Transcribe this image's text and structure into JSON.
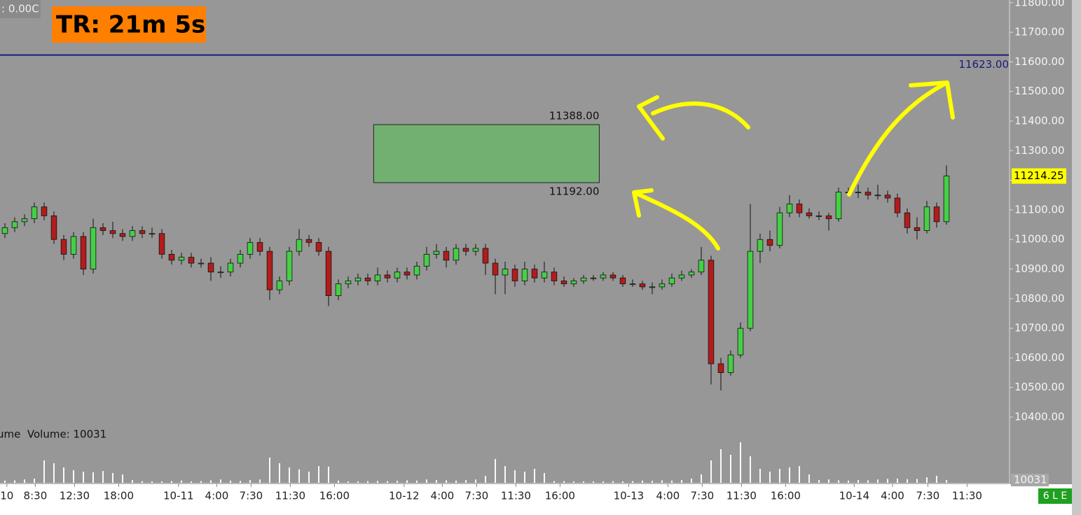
{
  "chart_data": {
    "type": "candlestick",
    "status": ": 0.00C",
    "title": "TR: 21m 5s",
    "volume_label": "ume  Volume: 10031",
    "instrument": "6 L E",
    "bull_color": "#46cf46",
    "bear_color": "#b31c1c",
    "ylim": [
      10367,
      11809
    ],
    "yticks": [
      {
        "value": 11800,
        "label": "11800.00"
      },
      {
        "value": 11700,
        "label": "11700.00"
      },
      {
        "value": 11600,
        "label": "11600.00"
      },
      {
        "value": 11500,
        "label": "11500.00"
      },
      {
        "value": 11400,
        "label": "11400.00"
      },
      {
        "value": 11300,
        "label": "11300.00"
      },
      {
        "value": 11200,
        "label": "11200.00"
      },
      {
        "value": 11100,
        "label": "11100.00"
      },
      {
        "value": 11000,
        "label": "11000.00"
      },
      {
        "value": 10900,
        "label": "10900.00"
      },
      {
        "value": 10800,
        "label": "10800.00"
      },
      {
        "value": 10700,
        "label": "10700.00"
      },
      {
        "value": 10600,
        "label": "10600.00"
      },
      {
        "value": 10500,
        "label": "10500.00"
      },
      {
        "value": 10400,
        "label": "10400.00"
      }
    ],
    "xlim": [
      0,
      102.86
    ],
    "xticks": [
      {
        "value": 0.7,
        "label": "10"
      },
      {
        "value": 3.6,
        "label": "8:30"
      },
      {
        "value": 7.6,
        "label": "12:30"
      },
      {
        "value": 12.1,
        "label": "18:00"
      },
      {
        "value": 18.2,
        "label": "10-11"
      },
      {
        "value": 22.1,
        "label": "4:00"
      },
      {
        "value": 25.6,
        "label": "7:30"
      },
      {
        "value": 29.6,
        "label": "11:30"
      },
      {
        "value": 34.1,
        "label": "16:00"
      },
      {
        "value": 41.2,
        "label": "10-12"
      },
      {
        "value": 45.1,
        "label": "4:00"
      },
      {
        "value": 48.6,
        "label": "7:30"
      },
      {
        "value": 52.6,
        "label": "11:30"
      },
      {
        "value": 57.1,
        "label": "16:00"
      },
      {
        "value": 64.1,
        "label": "10-13"
      },
      {
        "value": 68.1,
        "label": "4:00"
      },
      {
        "value": 71.6,
        "label": "7:30"
      },
      {
        "value": 75.6,
        "label": "11:30"
      },
      {
        "value": 80.1,
        "label": "16:00"
      },
      {
        "value": 87.1,
        "label": "10-14"
      },
      {
        "value": 91,
        "label": "4:00"
      },
      {
        "value": 94.6,
        "label": "7:30"
      },
      {
        "value": 98.6,
        "label": "11:30"
      }
    ],
    "ref_line": {
      "value": 11623,
      "label": "11623.00",
      "color": "#1a1a7a"
    },
    "zone": {
      "x": [
        38.1,
        61.1
      ],
      "high": 11388,
      "high_label": "11388.00",
      "low": 11192,
      "low_label": "11192.00",
      "color": "#72b072"
    },
    "last_price": {
      "value": 11214.25,
      "label": "11214.25"
    },
    "ohlc": [
      [
        11020,
        11055,
        11005,
        11040
      ],
      [
        11040,
        11075,
        11025,
        11060
      ],
      [
        11060,
        11085,
        11045,
        11070
      ],
      [
        11070,
        11125,
        11055,
        11110
      ],
      [
        11110,
        11125,
        11065,
        11080
      ],
      [
        11080,
        11095,
        10985,
        11000
      ],
      [
        11000,
        11015,
        10930,
        10950
      ],
      [
        10950,
        11025,
        10935,
        11010
      ],
      [
        11010,
        11025,
        10880,
        10900
      ],
      [
        10900,
        11070,
        10885,
        11040
      ],
      [
        11040,
        11055,
        11015,
        11030
      ],
      [
        11030,
        11060,
        11005,
        11020
      ],
      [
        11020,
        11035,
        10995,
        11010
      ],
      [
        11010,
        11045,
        10995,
        11030
      ],
      [
        11030,
        11045,
        11005,
        11020
      ],
      [
        11020,
        11040,
        11005,
        11020
      ],
      [
        11020,
        11035,
        10935,
        10950
      ],
      [
        10950,
        10965,
        10915,
        10930
      ],
      [
        10930,
        10955,
        10915,
        10940
      ],
      [
        10940,
        10955,
        10905,
        10920
      ],
      [
        10920,
        10935,
        10905,
        10920
      ],
      [
        10920,
        10940,
        10860,
        10890
      ],
      [
        10890,
        10910,
        10870,
        10890
      ],
      [
        10890,
        10935,
        10875,
        10920
      ],
      [
        10920,
        10965,
        10905,
        10950
      ],
      [
        10950,
        11005,
        10935,
        10990
      ],
      [
        10990,
        11005,
        10945,
        10960
      ],
      [
        10960,
        10975,
        10795,
        10830
      ],
      [
        10830,
        10875,
        10815,
        10860
      ],
      [
        10860,
        10975,
        10845,
        10960
      ],
      [
        10960,
        11035,
        10945,
        11000
      ],
      [
        11000,
        11015,
        10975,
        10990
      ],
      [
        10990,
        11005,
        10945,
        10960
      ],
      [
        10960,
        10975,
        10775,
        10810
      ],
      [
        10810,
        10865,
        10795,
        10850
      ],
      [
        10850,
        10875,
        10835,
        10860
      ],
      [
        10860,
        10885,
        10845,
        10870
      ],
      [
        10870,
        10885,
        10845,
        10860
      ],
      [
        10860,
        10905,
        10845,
        10880
      ],
      [
        10880,
        10895,
        10855,
        10870
      ],
      [
        10870,
        10905,
        10855,
        10890
      ],
      [
        10890,
        10905,
        10865,
        10880
      ],
      [
        10880,
        10925,
        10865,
        10910
      ],
      [
        10910,
        10975,
        10895,
        10950
      ],
      [
        10950,
        10985,
        10935,
        10960
      ],
      [
        10960,
        10975,
        10905,
        10930
      ],
      [
        10930,
        10985,
        10915,
        10970
      ],
      [
        10970,
        10985,
        10945,
        10960
      ],
      [
        10960,
        10985,
        10945,
        10970
      ],
      [
        10970,
        10985,
        10880,
        10920
      ],
      [
        10920,
        10935,
        10815,
        10880
      ],
      [
        10880,
        10925,
        10815,
        10900
      ],
      [
        10900,
        10915,
        10840,
        10860
      ],
      [
        10860,
        10925,
        10845,
        10900
      ],
      [
        10900,
        10915,
        10855,
        10870
      ],
      [
        10870,
        10925,
        10855,
        10890
      ],
      [
        10890,
        10905,
        10845,
        10860
      ],
      [
        10860,
        10875,
        10840,
        10850
      ],
      [
        10850,
        10870,
        10840,
        10860
      ],
      [
        10860,
        10880,
        10850,
        10870
      ],
      [
        10870,
        10880,
        10860,
        10870
      ],
      [
        10870,
        10890,
        10860,
        10880
      ],
      [
        10880,
        10890,
        10860,
        10870
      ],
      [
        10870,
        10880,
        10840,
        10850
      ],
      [
        10850,
        10865,
        10840,
        10850
      ],
      [
        10850,
        10860,
        10830,
        10840
      ],
      [
        10840,
        10855,
        10815,
        10840
      ],
      [
        10840,
        10865,
        10830,
        10850
      ],
      [
        10850,
        10885,
        10840,
        10870
      ],
      [
        10870,
        10895,
        10860,
        10880
      ],
      [
        10880,
        10900,
        10870,
        10890
      ],
      [
        10890,
        10975,
        10880,
        10930
      ],
      [
        10930,
        10945,
        10510,
        10580
      ],
      [
        10580,
        10600,
        10490,
        10550
      ],
      [
        10550,
        10625,
        10540,
        10610
      ],
      [
        10610,
        10720,
        10600,
        10700
      ],
      [
        10700,
        11120,
        10690,
        10960
      ],
      [
        10960,
        11020,
        10920,
        11000
      ],
      [
        11000,
        11030,
        10960,
        10980
      ],
      [
        10980,
        11110,
        10970,
        11090
      ],
      [
        11090,
        11150,
        11075,
        11120
      ],
      [
        11120,
        11135,
        11075,
        11090
      ],
      [
        11090,
        11105,
        11070,
        11080
      ],
      [
        11080,
        11095,
        11065,
        11080
      ],
      [
        11080,
        11090,
        11030,
        11070
      ],
      [
        11070,
        11175,
        11060,
        11160
      ],
      [
        11160,
        11175,
        11145,
        11160
      ],
      [
        11160,
        11185,
        11140,
        11160
      ],
      [
        11160,
        11175,
        11135,
        11150
      ],
      [
        11150,
        11185,
        11135,
        11150
      ],
      [
        11150,
        11165,
        11125,
        11140
      ],
      [
        11140,
        11155,
        11075,
        11090
      ],
      [
        11090,
        11105,
        11020,
        11040
      ],
      [
        11040,
        11075,
        11000,
        11030
      ],
      [
        11030,
        11130,
        11020,
        11110
      ],
      [
        11110,
        11125,
        11040,
        11060
      ],
      [
        11060,
        11250,
        11050,
        11214.25
      ]
    ],
    "volume": [
      8000,
      9000,
      12000,
      15000,
      80000,
      70000,
      55000,
      45000,
      40000,
      38000,
      42000,
      35000,
      30000,
      10000,
      6000,
      5000,
      5000,
      6000,
      8000,
      5000,
      6000,
      9000,
      12000,
      8000,
      7000,
      10000,
      12000,
      90000,
      70000,
      55000,
      48000,
      40000,
      60000,
      58000,
      8000,
      5000,
      5000,
      6000,
      7000,
      6000,
      7000,
      9000,
      8000,
      12000,
      10000,
      9000,
      8000,
      10000,
      12000,
      25000,
      85000,
      60000,
      45000,
      40000,
      50000,
      35000,
      6000,
      6000,
      5000,
      5000,
      5000,
      5000,
      6000,
      5000,
      6000,
      8000,
      7000,
      9000,
      8000,
      10000,
      15000,
      30000,
      80000,
      120000,
      100000,
      145000,
      95000,
      50000,
      40000,
      50000,
      55000,
      60000,
      30000,
      10000,
      12000,
      9000,
      8000,
      10000,
      9000,
      12000,
      14000,
      15000,
      13000,
      14000,
      20000,
      25000,
      10031
    ],
    "vlim": [
      0,
      175000
    ],
    "vticks": [
      {
        "value": 10031,
        "label": "10031"
      }
    ]
  }
}
